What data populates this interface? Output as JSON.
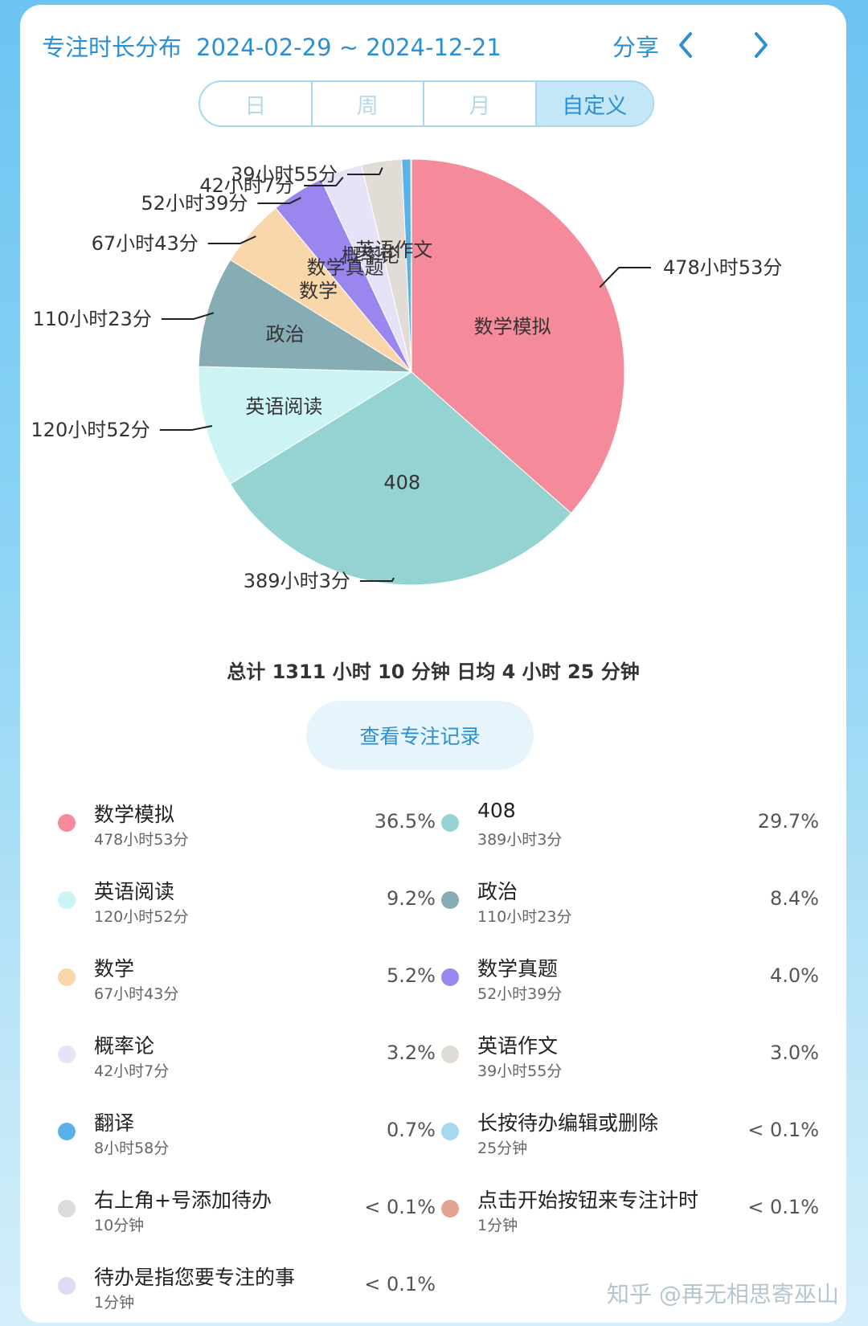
{
  "header": {
    "title": "专注时长分布",
    "date_range": "2024-02-29 ~ 2024-12-21",
    "share_label": "分享",
    "prev_icon": "chevron-left-icon",
    "next_icon": "chevron-right-icon",
    "accent": "#2b8fd1"
  },
  "tabs": [
    {
      "label": "日",
      "selected": false
    },
    {
      "label": "周",
      "selected": false
    },
    {
      "label": "月",
      "selected": false
    },
    {
      "label": "自定义",
      "selected": true
    }
  ],
  "summary": "总计 1311 小时 10 分钟 日均 4 小时 25 分钟",
  "view_records_label": "查看专注记录",
  "watermark": "知乎 @再无相思寄巫山",
  "chart_data": {
    "type": "pie",
    "title": "",
    "unit": "minutes",
    "slices": [
      {
        "label": "数学模拟",
        "duration": "478小时53分",
        "minutes": 28733,
        "percent": "36.5%",
        "color": "#f58b9a"
      },
      {
        "label": "408",
        "duration": "389小时3分",
        "minutes": 23343,
        "percent": "29.7%",
        "color": "#94d3d2"
      },
      {
        "label": "英语阅读",
        "duration": "120小时52分",
        "minutes": 7252,
        "percent": "9.2%",
        "color": "#cdf4f4"
      },
      {
        "label": "政治",
        "duration": "110小时23分",
        "minutes": 6623,
        "percent": "8.4%",
        "color": "#86adb3"
      },
      {
        "label": "数学",
        "duration": "67小时43分",
        "minutes": 4063,
        "percent": "5.2%",
        "color": "#fad7aa"
      },
      {
        "label": "数学真题",
        "duration": "52小时39分",
        "minutes": 3159,
        "percent": "4.0%",
        "color": "#9a86ee"
      },
      {
        "label": "概率论",
        "duration": "42小时7分",
        "minutes": 2527,
        "percent": "3.2%",
        "color": "#e6e3f8"
      },
      {
        "label": "英语作文",
        "duration": "39小时55分",
        "minutes": 2395,
        "percent": "3.0%",
        "color": "#e1dcd6"
      },
      {
        "label": "翻译",
        "duration": "8小时58分",
        "minutes": 538,
        "percent": "0.7%",
        "color": "#5ab3e8"
      },
      {
        "label": "长按待办编辑或删除",
        "duration": "25分钟",
        "minutes": 25,
        "percent": "< 0.1%",
        "color": "#a9d8f2"
      },
      {
        "label": "右上角+号添加待办",
        "duration": "10分钟",
        "minutes": 10,
        "percent": "< 0.1%",
        "color": "#dcdcdc"
      },
      {
        "label": "点击开始按钮来专注计时",
        "duration": "1分钟",
        "minutes": 1,
        "percent": "< 0.1%",
        "color": "#e2a48e"
      },
      {
        "label": "待办是指您要专注的事",
        "duration": "1分钟",
        "minutes": 1,
        "percent": "< 0.1%",
        "color": "#dcdcf4"
      }
    ],
    "labeled_on_chart": [
      "数学模拟",
      "408",
      "英语阅读",
      "政治",
      "数学",
      "数学真题",
      "概率论",
      "英语作文"
    ]
  }
}
